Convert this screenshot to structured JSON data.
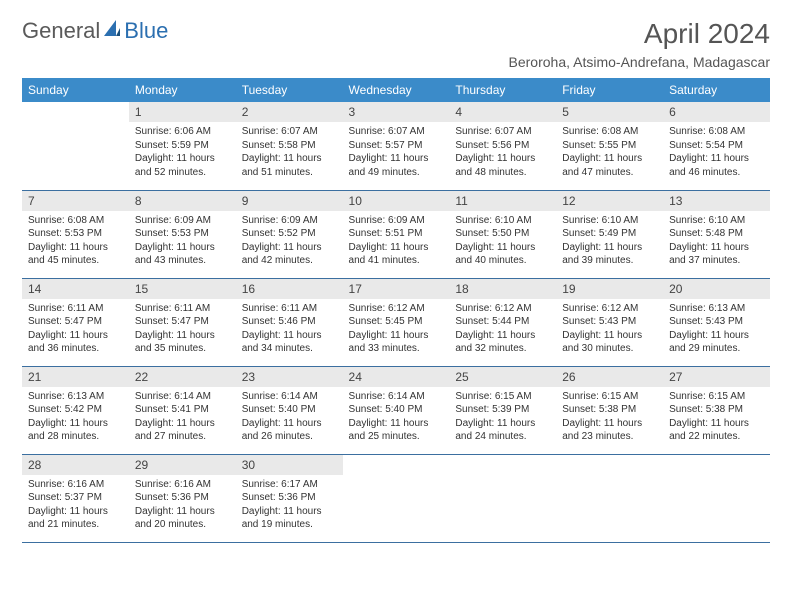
{
  "logo": {
    "text_left": "General",
    "text_right": "Blue"
  },
  "header": {
    "month_title": "April 2024",
    "location": "Beroroha, Atsimo-Andrefana, Madagascar"
  },
  "colors": {
    "header_row_bg": "#3b8bc9",
    "header_row_text": "#ffffff",
    "daynum_bg": "#e9e9e9",
    "row_border": "#3b6fa0",
    "logo_blue": "#2b6fb0",
    "text": "#333333",
    "page_bg": "#ffffff"
  },
  "typography": {
    "month_title_pt": 28,
    "location_pt": 14,
    "weekday_pt": 12,
    "daynum_pt": 12,
    "body_pt": 10,
    "font_family": "Arial"
  },
  "layout": {
    "columns": 7,
    "rows": 5,
    "first_day_column_index": 1
  },
  "weekdays": [
    "Sunday",
    "Monday",
    "Tuesday",
    "Wednesday",
    "Thursday",
    "Friday",
    "Saturday"
  ],
  "days": [
    {
      "n": 1,
      "sunrise": "6:06 AM",
      "sunset": "5:59 PM",
      "daylight": "11 hours and 52 minutes."
    },
    {
      "n": 2,
      "sunrise": "6:07 AM",
      "sunset": "5:58 PM",
      "daylight": "11 hours and 51 minutes."
    },
    {
      "n": 3,
      "sunrise": "6:07 AM",
      "sunset": "5:57 PM",
      "daylight": "11 hours and 49 minutes."
    },
    {
      "n": 4,
      "sunrise": "6:07 AM",
      "sunset": "5:56 PM",
      "daylight": "11 hours and 48 minutes."
    },
    {
      "n": 5,
      "sunrise": "6:08 AM",
      "sunset": "5:55 PM",
      "daylight": "11 hours and 47 minutes."
    },
    {
      "n": 6,
      "sunrise": "6:08 AM",
      "sunset": "5:54 PM",
      "daylight": "11 hours and 46 minutes."
    },
    {
      "n": 7,
      "sunrise": "6:08 AM",
      "sunset": "5:53 PM",
      "daylight": "11 hours and 45 minutes."
    },
    {
      "n": 8,
      "sunrise": "6:09 AM",
      "sunset": "5:53 PM",
      "daylight": "11 hours and 43 minutes."
    },
    {
      "n": 9,
      "sunrise": "6:09 AM",
      "sunset": "5:52 PM",
      "daylight": "11 hours and 42 minutes."
    },
    {
      "n": 10,
      "sunrise": "6:09 AM",
      "sunset": "5:51 PM",
      "daylight": "11 hours and 41 minutes."
    },
    {
      "n": 11,
      "sunrise": "6:10 AM",
      "sunset": "5:50 PM",
      "daylight": "11 hours and 40 minutes."
    },
    {
      "n": 12,
      "sunrise": "6:10 AM",
      "sunset": "5:49 PM",
      "daylight": "11 hours and 39 minutes."
    },
    {
      "n": 13,
      "sunrise": "6:10 AM",
      "sunset": "5:48 PM",
      "daylight": "11 hours and 37 minutes."
    },
    {
      "n": 14,
      "sunrise": "6:11 AM",
      "sunset": "5:47 PM",
      "daylight": "11 hours and 36 minutes."
    },
    {
      "n": 15,
      "sunrise": "6:11 AM",
      "sunset": "5:47 PM",
      "daylight": "11 hours and 35 minutes."
    },
    {
      "n": 16,
      "sunrise": "6:11 AM",
      "sunset": "5:46 PM",
      "daylight": "11 hours and 34 minutes."
    },
    {
      "n": 17,
      "sunrise": "6:12 AM",
      "sunset": "5:45 PM",
      "daylight": "11 hours and 33 minutes."
    },
    {
      "n": 18,
      "sunrise": "6:12 AM",
      "sunset": "5:44 PM",
      "daylight": "11 hours and 32 minutes."
    },
    {
      "n": 19,
      "sunrise": "6:12 AM",
      "sunset": "5:43 PM",
      "daylight": "11 hours and 30 minutes."
    },
    {
      "n": 20,
      "sunrise": "6:13 AM",
      "sunset": "5:43 PM",
      "daylight": "11 hours and 29 minutes."
    },
    {
      "n": 21,
      "sunrise": "6:13 AM",
      "sunset": "5:42 PM",
      "daylight": "11 hours and 28 minutes."
    },
    {
      "n": 22,
      "sunrise": "6:14 AM",
      "sunset": "5:41 PM",
      "daylight": "11 hours and 27 minutes."
    },
    {
      "n": 23,
      "sunrise": "6:14 AM",
      "sunset": "5:40 PM",
      "daylight": "11 hours and 26 minutes."
    },
    {
      "n": 24,
      "sunrise": "6:14 AM",
      "sunset": "5:40 PM",
      "daylight": "11 hours and 25 minutes."
    },
    {
      "n": 25,
      "sunrise": "6:15 AM",
      "sunset": "5:39 PM",
      "daylight": "11 hours and 24 minutes."
    },
    {
      "n": 26,
      "sunrise": "6:15 AM",
      "sunset": "5:38 PM",
      "daylight": "11 hours and 23 minutes."
    },
    {
      "n": 27,
      "sunrise": "6:15 AM",
      "sunset": "5:38 PM",
      "daylight": "11 hours and 22 minutes."
    },
    {
      "n": 28,
      "sunrise": "6:16 AM",
      "sunset": "5:37 PM",
      "daylight": "11 hours and 21 minutes."
    },
    {
      "n": 29,
      "sunrise": "6:16 AM",
      "sunset": "5:36 PM",
      "daylight": "11 hours and 20 minutes."
    },
    {
      "n": 30,
      "sunrise": "6:17 AM",
      "sunset": "5:36 PM",
      "daylight": "11 hours and 19 minutes."
    }
  ],
  "labels": {
    "sunrise_prefix": "Sunrise: ",
    "sunset_prefix": "Sunset: ",
    "daylight_prefix": "Daylight: "
  }
}
